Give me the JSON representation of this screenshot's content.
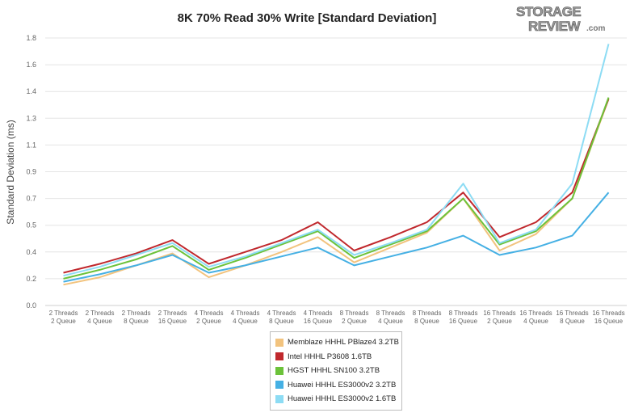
{
  "logo": {
    "line1": "STORAGE",
    "line2": "REVIEW",
    "suffix": ".com"
  },
  "chart_data": {
    "type": "line",
    "title": "8K 70% Read 30% Write [Standard Deviation]",
    "xlabel": "",
    "ylabel": "Standard Deviation (ms)",
    "ylim": [
      0,
      1.8
    ],
    "yticks": [
      "0.0",
      "0.2",
      "0.4",
      "0.5",
      "0.7",
      "0.9",
      "1.1",
      "1.3",
      "1.4",
      "1.6",
      "1.8"
    ],
    "grid": true,
    "legend_position": "bottom-center",
    "categories": [
      [
        "2 Threads",
        "2 Queue"
      ],
      [
        "2 Threads",
        "4 Queue"
      ],
      [
        "2 Threads",
        "8 Queue"
      ],
      [
        "2 Threads",
        "16 Queue"
      ],
      [
        "4 Threads",
        "2 Queue"
      ],
      [
        "4 Threads",
        "4 Queue"
      ],
      [
        "4 Threads",
        "8 Queue"
      ],
      [
        "4 Threads",
        "16 Queue"
      ],
      [
        "8 Threads",
        "2 Queue"
      ],
      [
        "8 Threads",
        "4 Queue"
      ],
      [
        "8 Threads",
        "8 Queue"
      ],
      [
        "8 Threads",
        "16 Queue"
      ],
      [
        "16 Threads",
        "2 Queue"
      ],
      [
        "16 Threads",
        "4 Queue"
      ],
      [
        "16 Threads",
        "8 Queue"
      ],
      [
        "16 Threads",
        "16 Queue"
      ]
    ],
    "series": [
      {
        "name": "Memblaze HHHL PBlaze4 3.2TB",
        "color": "#f2c37e",
        "values": [
          0.14,
          0.19,
          0.27,
          0.35,
          0.19,
          0.27,
          0.36,
          0.46,
          0.29,
          0.39,
          0.49,
          0.72,
          0.37,
          0.48,
          0.72,
          1.39
        ]
      },
      {
        "name": "Intel HHHL P3608 1.6TB",
        "color": "#c0282d",
        "values": [
          0.22,
          0.28,
          0.35,
          0.44,
          0.28,
          0.36,
          0.44,
          0.56,
          0.37,
          0.46,
          0.56,
          0.76,
          0.46,
          0.56,
          0.76,
          1.39
        ]
      },
      {
        "name": "HGST HHHL SN100 3.2TB",
        "color": "#6cc23a",
        "values": [
          0.18,
          0.24,
          0.31,
          0.4,
          0.24,
          0.32,
          0.41,
          0.5,
          0.32,
          0.41,
          0.5,
          0.72,
          0.41,
          0.5,
          0.72,
          1.4
        ]
      },
      {
        "name": "Huawei HHHL ES3000v2 3.2TB",
        "color": "#45b0e4",
        "values": [
          0.16,
          0.21,
          0.27,
          0.34,
          0.22,
          0.27,
          0.33,
          0.39,
          0.27,
          0.33,
          0.39,
          0.47,
          0.34,
          0.39,
          0.47,
          0.76
        ]
      },
      {
        "name": "Huawei HHHL ES3000v2 1.6TB",
        "color": "#8ddcf4",
        "values": [
          0.2,
          0.26,
          0.34,
          0.42,
          0.26,
          0.33,
          0.42,
          0.51,
          0.34,
          0.42,
          0.51,
          0.82,
          0.42,
          0.51,
          0.82,
          1.76
        ]
      }
    ]
  }
}
